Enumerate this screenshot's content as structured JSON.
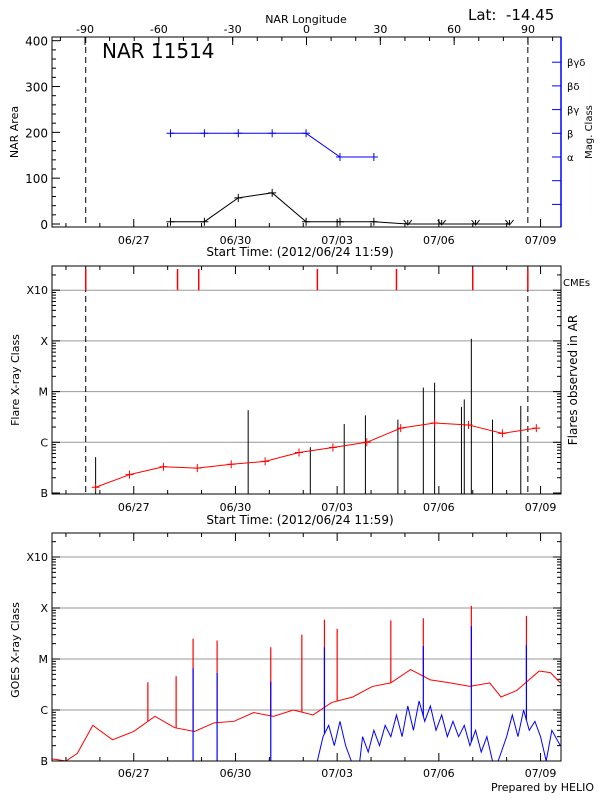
{
  "header": {
    "lat_label": "Lat:",
    "lat_value": "-14.45"
  },
  "footer": {
    "prepared_by": "Prepared by HELIO"
  },
  "colors": {
    "area": "#000000",
    "mag_class": "#0000ff",
    "flare_avg": "#ff0000",
    "flares": "#000000",
    "cme": "#ff0000",
    "goes_long": "#ff0000",
    "goes_short": "#0000ff",
    "grid": "#999999"
  },
  "chart_data": [
    {
      "type": "line",
      "title": "NAR 11514",
      "top_axis_label": "NAR Longitude",
      "top_tick_labels": [
        "-90",
        "-60",
        "-30",
        "0",
        "30",
        "60",
        "90"
      ],
      "xlabel": "Start Time: (2012/06/24 11:59)",
      "x_tick_labels": [
        "06/27",
        "06/30",
        "07/03",
        "07/06",
        "07/09"
      ],
      "ylabel": "NAR Area",
      "ylim": [
        0,
        400
      ],
      "y_tick_labels": [
        "0",
        "100",
        "200",
        "300",
        "400"
      ],
      "y2label": "Mag. Class",
      "y2_tick_labels": [
        "α",
        "β",
        "βγ",
        "βδ",
        "βγδ"
      ],
      "limb_crossings": [
        "06/25 14:00",
        "07/08 15:00"
      ],
      "area_series": {
        "times": [
          "06/28 02:00",
          "06/29 02:00",
          "06/30 02:00",
          "07/01 02:00",
          "07/02 02:00",
          "07/03 02:00",
          "07/04 02:00",
          "07/05 02:00",
          "07/06 02:00",
          "07/07 02:00",
          "07/08 02:00"
        ],
        "values": [
          5,
          5,
          57,
          68,
          5,
          5,
          5,
          0,
          0,
          0,
          0
        ],
        "not_visible": [
          false,
          false,
          false,
          false,
          false,
          false,
          false,
          true,
          true,
          true,
          true
        ]
      },
      "mag_class_series": {
        "times": [
          "06/28 02:00",
          "06/29 02:00",
          "06/30 02:00",
          "07/01 02:00",
          "07/02 02:00",
          "07/03 02:00",
          "07/04 02:00"
        ],
        "values": [
          "β",
          "β",
          "β",
          "β",
          "β",
          "α",
          "α"
        ]
      }
    },
    {
      "type": "line",
      "xlabel": "Start Time: (2012/06/24 11:59)",
      "x_tick_labels": [
        "06/27",
        "06/30",
        "07/03",
        "07/06",
        "07/09"
      ],
      "ylabel": "Flare X-ray Class",
      "y_tick_labels": [
        "B",
        "C",
        "M",
        "X",
        "X10"
      ],
      "y2label": "Flares observed in AR",
      "cme_label": "CMEs",
      "grid": true,
      "limb_crossings": [
        "06/25 14:00",
        "07/08 15:00"
      ],
      "cmes": [
        "06/25 14:00",
        "06/28 07:00",
        "06/28 22:00",
        "07/02 10:00",
        "07/04 18:00",
        "07/07 00:00",
        "07/08 15:00"
      ],
      "daily_average": {
        "times": [
          "06/25 21:00",
          "06/26 21:00",
          "06/27 21:00",
          "06/28 21:00",
          "06/29 21:00",
          "06/30 21:00",
          "07/01 21:00",
          "07/02 21:00",
          "07/03 21:00",
          "07/04 21:00",
          "07/05 21:00",
          "07/06 21:00",
          "07/07 21:00",
          "07/08 21:00"
        ],
        "values": [
          "B1.3",
          "B2.3",
          "B3.3",
          "B3.1",
          "B3.7",
          "B4.2",
          "B6.3",
          "B7.9",
          "C1.0",
          "C1.9",
          "C2.4",
          "C2.2",
          "C1.5",
          "C1.9"
        ]
      },
      "flares": {
        "times": [
          "06/25 21:00",
          "06/30 09:00",
          "07/02 05:00",
          "07/03 05:00",
          "07/03 20:00",
          "07/04 19:00",
          "07/05 13:00",
          "07/05 21:00",
          "07/06 16:00",
          "07/06 18:00",
          "07/06 23:00",
          "07/07 14:00",
          "07/08 10:00"
        ],
        "values": [
          "B5.1",
          "C4.3",
          "B8.0",
          "C2.3",
          "C3.4",
          "C2.8",
          "M1.2",
          "M1.5",
          "C5.0",
          "C7.0",
          "X1.1",
          "C2.8",
          "C5.2"
        ]
      }
    },
    {
      "type": "line",
      "x_tick_labels": [
        "06/27",
        "06/30",
        "07/03",
        "07/06",
        "07/09"
      ],
      "ylabel": "GOES X-ray Class",
      "y_tick_labels": [
        "B",
        "C",
        "M",
        "X",
        "X10"
      ],
      "grid": true,
      "series": [
        {
          "color": "#ff0000",
          "times": [
            "06/24 12:00",
            "06/25 00:00",
            "06/25 08:00",
            "06/25 19:00",
            "06/26 09:00",
            "06/27 00:00",
            "06/27 15:00",
            "06/28 05:00",
            "06/28 19:00",
            "06/29 09:00",
            "06/29 23:00",
            "06/30 13:00",
            "07/01 03:00",
            "07/01 17:00",
            "07/02 07:00",
            "07/02 20:00",
            "07/03 11:00",
            "07/04 01:00",
            "07/04 14:00",
            "07/05 04:00",
            "07/05 18:00",
            "07/06 08:00",
            "07/06 22:00",
            "07/07 12:00",
            "07/07 20:00",
            "07/08 07:00",
            "07/08 23:00",
            "07/09 07:00",
            "07/09 14:00"
          ],
          "values": [
            "B1.1",
            "A9",
            "B1.4",
            "B5.0",
            "B2.6",
            "B3.8",
            "B7.5",
            "B4.5",
            "B3.8",
            "B5.6",
            "B6.0",
            "B8.9",
            "B7.5",
            "C1.0",
            "B8.0",
            "C1.4",
            "C1.8",
            "C2.9",
            "C3.4",
            "C6.2",
            "C3.9",
            "C3.4",
            "C2.9",
            "C3.4",
            "C1.8",
            "C2.4",
            "C5.8",
            "C5.4",
            "C3.4"
          ],
          "peaks": {
            "times": [
              "06/27 10:00",
              "06/28 06:00",
              "06/28 18:00",
              "06/29 11:00",
              "07/01 01:00",
              "07/01 23:00",
              "07/02 15:00",
              "07/03 00:00",
              "07/04 14:00",
              "07/05 13:00",
              "07/06 23:00",
              "07/08 14:00"
            ],
            "values": [
              "C3.5",
              "C4.6",
              "M2.5",
              "M2.3",
              "M1.7",
              "M3.0",
              "M5.9",
              "M3.9",
              "M5.7",
              "M6.3",
              "X1.1",
              "M7.0"
            ]
          }
        },
        {
          "color": "#0000ff",
          "times": [
            "06/24 12:00",
            "07/02 10:00",
            "07/02 14:00",
            "07/02 18:00",
            "07/02 22:00",
            "07/03 02:00",
            "07/03 06:00",
            "07/03 10:00",
            "07/03 16:00",
            "07/03 18:00",
            "07/03 22:00",
            "07/04 02:00",
            "07/04 06:00",
            "07/04 10:00",
            "07/04 14:00",
            "07/04 18:00",
            "07/04 22:00",
            "07/05 02:00",
            "07/05 06:00",
            "07/05 10:00",
            "07/05 14:00",
            "07/05 18:00",
            "07/05 22:00",
            "07/06 02:00",
            "07/06 06:00",
            "07/06 10:00",
            "07/06 14:00",
            "07/06 18:00",
            "07/06 22:00",
            "07/07 02:00",
            "07/07 06:00",
            "07/07 10:00",
            "07/07 14:00",
            "07/07 18:00",
            "07/08 00:00",
            "07/08 04:00",
            "07/08 08:00",
            "07/08 12:00",
            "07/08 16:00",
            "07/08 20:00",
            "07/09 00:00",
            "07/09 04:00",
            "07/09 08:00",
            "07/09 14:00"
          ],
          "values": [
            "A5",
            "A5",
            "B3",
            "B5",
            "B2",
            "B6",
            "B2",
            "A6",
            "A6",
            "B3",
            "B1.5",
            "B4",
            "B2",
            "B5",
            "B3",
            "B8",
            "B3",
            "C1.2",
            "B4",
            "C1.5",
            "B6",
            "C1.2",
            "B4",
            "B8",
            "B3",
            "B6",
            "B3",
            "B5",
            "B2",
            "B4",
            "B1.5",
            "B3",
            "A8",
            "A8",
            "B3",
            "B8",
            "B3",
            "C1.0",
            "B4",
            "B6",
            "B3",
            "A8",
            "B4",
            "B2"
          ],
          "peaks": {
            "times": [
              "06/28 18:00",
              "06/29 11:00",
              "07/01 01:00",
              "07/02 15:00",
              "07/05 13:00",
              "07/06 23:00",
              "07/08 14:00"
            ],
            "values": [
              "C6.6",
              "C5.3",
              "C3.6",
              "M1.7",
              "M1.8",
              "M4.4",
              "M1.9"
            ]
          }
        }
      ]
    }
  ]
}
